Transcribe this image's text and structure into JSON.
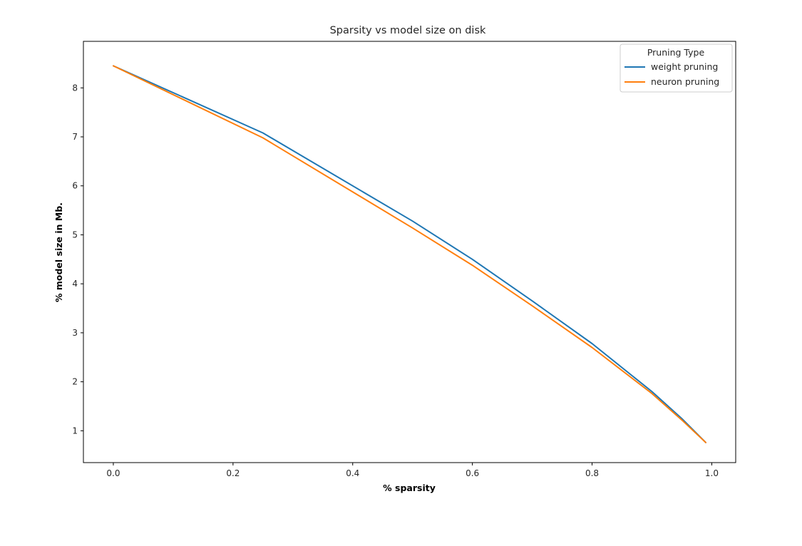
{
  "chart_data": {
    "type": "line",
    "title": "Sparsity vs model size on disk",
    "xlabel": "% sparsity",
    "ylabel": "% model size in Mb.",
    "xlim": [
      -0.05,
      1.04
    ],
    "ylim": [
      0.35,
      8.95
    ],
    "xticks": [
      0.0,
      0.2,
      0.4,
      0.6,
      0.8,
      1.0
    ],
    "xtick_labels": [
      "0.0",
      "0.2",
      "0.4",
      "0.6",
      "0.8",
      "1.0"
    ],
    "yticks": [
      1,
      2,
      3,
      4,
      5,
      6,
      7,
      8
    ],
    "ytick_labels": [
      "1",
      "2",
      "3",
      "4",
      "5",
      "6",
      "7",
      "8"
    ],
    "grid": false,
    "legend": {
      "title": "Pruning Type",
      "placement": "top-right"
    },
    "series": [
      {
        "name": "weight pruning",
        "color": "#1f77b4",
        "x": [
          0.0,
          0.25,
          0.5,
          0.6,
          0.7,
          0.8,
          0.9,
          0.95,
          0.99
        ],
        "y": [
          8.45,
          7.08,
          5.28,
          4.5,
          3.65,
          2.78,
          1.8,
          1.25,
          0.76
        ]
      },
      {
        "name": "neuron pruning",
        "color": "#ff7f0e",
        "x": [
          0.0,
          0.25,
          0.5,
          0.6,
          0.7,
          0.8,
          0.9,
          0.95,
          0.99
        ],
        "y": [
          8.45,
          6.98,
          5.14,
          4.38,
          3.55,
          2.7,
          1.76,
          1.22,
          0.76
        ]
      }
    ]
  }
}
